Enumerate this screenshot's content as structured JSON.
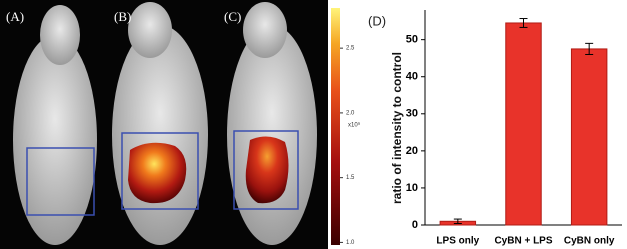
{
  "image_panels": {
    "labels": [
      "(A)",
      "(B)",
      "(C)"
    ]
  },
  "colorbar": {
    "lim": [
      0.98,
      2.81
    ],
    "ticks": [
      {
        "value": 1,
        "label": "1.0"
      },
      1.5,
      {
        "value": 2,
        "label": "2.0"
      },
      2.5
    ],
    "unit": "x10⁹"
  },
  "chart_data": {
    "type": "bar",
    "panel_label": "(D)",
    "ylabel": "ratio of  intensity to control",
    "categories": [
      "LPS only",
      "CyBN + LPS",
      "CyBN only"
    ],
    "values": [
      1,
      54.5,
      47.5
    ],
    "errors": [
      0.6,
      1.2,
      1.5
    ],
    "color": "#e8332a",
    "ylim": [
      0,
      58
    ],
    "yticks": [
      0,
      10,
      20,
      30,
      40,
      50
    ]
  }
}
